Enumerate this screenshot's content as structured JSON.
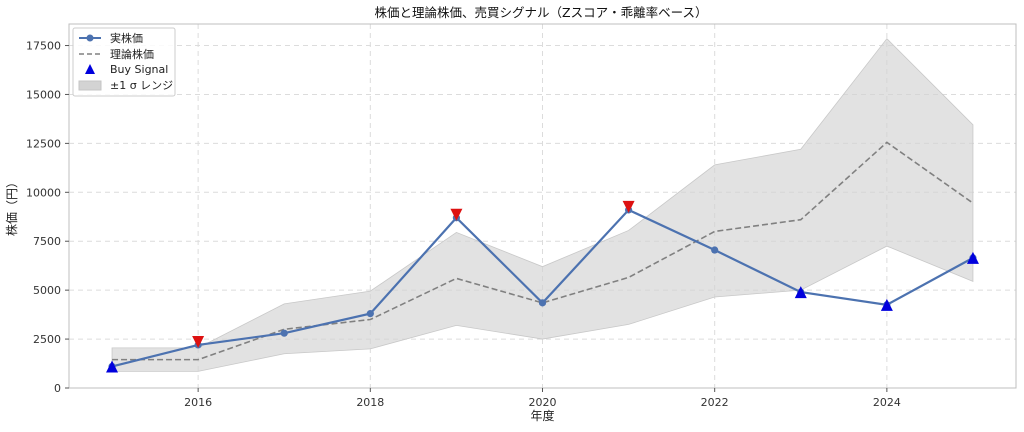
{
  "chart_data": {
    "type": "line",
    "title": "株価と理論株価、売買シグナル（Zスコア・乖離率ベース）",
    "xlabel": "年度",
    "ylabel": "株価（円）",
    "x": [
      2015,
      2016,
      2017,
      2018,
      2019,
      2020,
      2021,
      2022,
      2023,
      2024,
      2025
    ],
    "xlim": [
      2014.5,
      2025.5
    ],
    "ylim": [
      0,
      18600
    ],
    "xticks": [
      2016,
      2018,
      2020,
      2022,
      2024
    ],
    "yticks": [
      0,
      2500,
      5000,
      7500,
      10000,
      12500,
      15000,
      17500
    ],
    "grid": true,
    "legend_position": "top-left",
    "series": [
      {
        "name": "実株価",
        "style": "solid-line-with-circle-markers",
        "color": "#4c72b0",
        "values": [
          1100,
          2200,
          2800,
          3800,
          8700,
          4350,
          9100,
          7050,
          4900,
          4250,
          6650
        ]
      },
      {
        "name": "理論株価",
        "style": "dashed-line",
        "color": "#808080",
        "values": [
          1450,
          1450,
          3000,
          3500,
          5600,
          4350,
          5650,
          8000,
          8600,
          12550,
          9450
        ]
      }
    ],
    "band": {
      "name": "±1 σ レンジ",
      "color": "#d3d3d3",
      "lower": [
        850,
        850,
        1750,
        2000,
        3200,
        2500,
        3250,
        4650,
        5000,
        7250,
        5450
      ],
      "upper": [
        2050,
        2050,
        4300,
        4950,
        7950,
        6200,
        8050,
        11400,
        12200,
        17850,
        13450
      ]
    },
    "buy_signals": {
      "name": "Buy Signal",
      "color": "#0000dd",
      "x": [
        2015,
        2023,
        2024,
        2025
      ],
      "y": [
        1100,
        4900,
        4250,
        6650
      ]
    },
    "sell_signals": {
      "color": "#dd1111",
      "x": [
        2016,
        2019,
        2021
      ],
      "y": [
        2200,
        8700,
        9100
      ]
    }
  }
}
